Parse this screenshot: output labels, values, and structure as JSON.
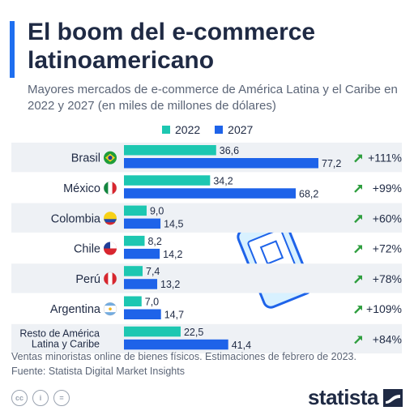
{
  "header": {
    "title": "El boom del e-commerce latinoamericano",
    "subtitle": "Mayores mercados de e-commerce de América Latina y el Caribe en 2022 y 2027 (en miles de millones de dólares)"
  },
  "colors": {
    "series_2022": "#1dc7b1",
    "series_2027": "#1e63e9",
    "row_band": "#eef1f5",
    "text": "#1f2a44",
    "growth_arrow": "#2e9e3e"
  },
  "chart_data": {
    "type": "bar",
    "orientation": "horizontal",
    "categories": [
      "Brasil",
      "México",
      "Colombia",
      "Chile",
      "Perú",
      "Argentina",
      "Resto de América Latina y Caribe"
    ],
    "series": [
      {
        "name": "2022",
        "values": [
          36.6,
          34.2,
          9.0,
          8.2,
          7.4,
          7.0,
          22.5
        ],
        "labels": [
          "36,6",
          "34,2",
          "9,0",
          "8,2",
          "7,4",
          "7,0",
          "22,5"
        ]
      },
      {
        "name": "2027",
        "values": [
          77.2,
          68.2,
          14.5,
          14.2,
          13.2,
          14.7,
          41.4
        ],
        "labels": [
          "77,2",
          "68,2",
          "14,5",
          "14,2",
          "13,2",
          "14,7",
          "41,4"
        ]
      }
    ],
    "growth": [
      "+111%",
      "+99%",
      "+60%",
      "+72%",
      "+78%",
      "+109%",
      "+84%"
    ],
    "legend": [
      "2022",
      "2027"
    ],
    "legend_position": "top",
    "grid": false,
    "xlim": [
      0,
      80
    ]
  },
  "flags": [
    "brazil-flag-icon",
    "mexico-flag-icon",
    "colombia-flag-icon",
    "chile-flag-icon",
    "peru-flag-icon",
    "argentina-flag-icon",
    ""
  ],
  "footer": {
    "note": "Ventas minoristas online de bienes físicos. Estimaciones de febrero de 2023.",
    "source": "Fuente: Statista Digital Market Insights",
    "brand": "statista",
    "license_icons": [
      "cc",
      "i",
      "="
    ]
  }
}
